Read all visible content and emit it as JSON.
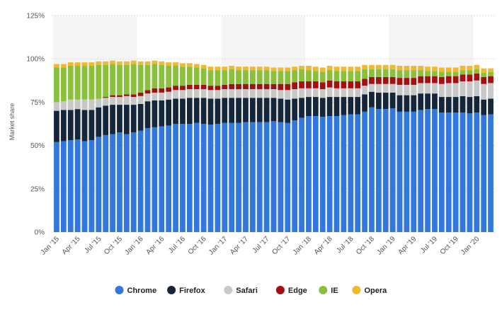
{
  "chart_data": {
    "type": "bar",
    "stacked": true,
    "ylabel": "Market share",
    "ylim": [
      0,
      125
    ],
    "yticks": [
      "0%",
      "25%",
      "50%",
      "75%",
      "100%",
      "125%"
    ],
    "ytick_values": [
      0,
      25,
      50,
      75,
      100,
      125
    ],
    "grid": true,
    "legend_position": "bottom",
    "categories": [
      "Jan '15",
      "Feb '15",
      "Mar '15",
      "Apr '15",
      "May '15",
      "Jun '15",
      "Jul '15",
      "Aug '15",
      "Sep '15",
      "Oct '15",
      "Nov '15",
      "Dec '15",
      "Jan '16",
      "Feb '16",
      "Mar '16",
      "Apr '16",
      "May '16",
      "Jun '16",
      "Jul '16",
      "Aug '16",
      "Sep '16",
      "Oct '16",
      "Nov '16",
      "Dec '16",
      "Jan '17",
      "Feb '17",
      "Mar '17",
      "Apr '17",
      "May '17",
      "Jun '17",
      "Jul '17",
      "Aug '17",
      "Sep '17",
      "Oct '17",
      "Nov '17",
      "Dec '17",
      "Jan '18",
      "Feb '18",
      "Mar '18",
      "Apr '18",
      "May '18",
      "Jun '18",
      "Jul '18",
      "Aug '18",
      "Sep '18",
      "Oct '18",
      "Nov '18",
      "Dec '18",
      "Jan '19",
      "Feb '19",
      "Mar '19",
      "Apr '19",
      "May '19",
      "Jun '19",
      "Jul '19",
      "Aug '19",
      "Sep '19",
      "Oct '19",
      "Nov '19",
      "Dec '19",
      "Jan '20",
      "Feb '20",
      "Mar '20"
    ],
    "xtick_labels": [
      "Jan '15",
      "Apr '15",
      "Jul '15",
      "Oct '15",
      "Jan '16",
      "Apr '16",
      "Jul '16",
      "Oct '16",
      "Jan '17",
      "Apr '17",
      "Jul '17",
      "Oct '17",
      "Jan '18",
      "Apr '18",
      "Jul '18",
      "Oct '18",
      "Jan '19",
      "Apr '19",
      "Jul '19",
      "Oct '19",
      "Jan '20"
    ],
    "series": [
      {
        "name": "Chrome",
        "color": "#3278dc",
        "values": [
          52,
          52.5,
          53,
          53.5,
          52.5,
          53,
          55,
          56,
          56.5,
          57.5,
          56.5,
          57.5,
          58.5,
          60,
          60.5,
          61,
          61.5,
          62.5,
          62.5,
          62.5,
          63,
          62.5,
          62,
          62.5,
          63,
          63,
          63,
          63.5,
          63.5,
          63.5,
          63.5,
          64,
          63.5,
          63,
          64.5,
          66,
          67,
          67,
          66.5,
          67,
          67,
          67.5,
          68,
          68,
          69.5,
          72,
          71,
          71,
          71.5,
          69.5,
          69.5,
          69.5,
          70.5,
          71,
          71,
          69,
          69,
          69,
          69,
          68.5,
          69,
          67.5,
          68
        ]
      },
      {
        "name": "Firefox",
        "color": "#15253a",
        "values": [
          18,
          18,
          17.5,
          17.5,
          18,
          17.5,
          17,
          17,
          17,
          16,
          17,
          16,
          15.5,
          15.5,
          15.5,
          15,
          15,
          14.5,
          14.5,
          15,
          14.5,
          15,
          15,
          14.5,
          14.5,
          14.5,
          14.5,
          14,
          14,
          14,
          14,
          13.5,
          13.5,
          13.5,
          12.5,
          11.5,
          11,
          11,
          11,
          11,
          11,
          10.5,
          10,
          10,
          10,
          9,
          9.5,
          9.5,
          9,
          9.5,
          9.5,
          9.5,
          9.5,
          9,
          9,
          9,
          9,
          9,
          9.5,
          9.5,
          9.5,
          9,
          9
        ]
      },
      {
        "name": "Safari",
        "color": "#c8c8c8",
        "values": [
          5,
          5,
          6,
          5.5,
          6,
          6,
          5,
          4.5,
          4.5,
          4.5,
          5,
          4.5,
          4.5,
          4.5,
          4.5,
          4.5,
          4.5,
          5,
          5,
          5,
          5,
          5,
          5,
          5,
          5,
          5,
          5,
          5,
          5,
          5,
          5,
          5,
          5,
          5.5,
          5.5,
          5.5,
          5,
          5,
          5,
          5.5,
          5,
          5,
          5,
          5,
          5,
          4.5,
          5,
          5,
          5,
          6,
          6,
          6,
          6,
          6,
          6,
          7.5,
          8,
          8,
          8.5,
          9,
          9,
          9,
          9
        ]
      },
      {
        "name": "Edge",
        "color": "#a41010",
        "values": [
          0,
          0,
          0,
          0,
          0,
          0,
          0,
          0.5,
          1,
          1,
          1,
          1.5,
          2,
          2,
          2.5,
          2.5,
          2.5,
          2.5,
          2.5,
          2.5,
          2.5,
          2.5,
          2.5,
          2.5,
          2.5,
          3,
          3,
          3,
          3,
          3,
          3,
          3,
          3.5,
          3.5,
          4,
          4,
          4,
          4,
          4,
          4,
          4,
          4,
          4,
          4,
          4,
          4,
          4,
          4,
          4,
          4,
          4,
          4,
          4,
          4,
          4,
          4,
          4,
          4,
          4,
          4,
          4,
          4,
          4
        ]
      },
      {
        "name": "IE",
        "color": "#8ac03c",
        "values": [
          20,
          19.5,
          19.5,
          19.5,
          19.5,
          19.5,
          19.5,
          18.5,
          18,
          17.5,
          17,
          17.5,
          16,
          14.5,
          14,
          13.5,
          12.5,
          11.5,
          11,
          10.5,
          10,
          9.5,
          9,
          9,
          8.5,
          8.5,
          8,
          8,
          8,
          8,
          8,
          7.5,
          7.5,
          7.5,
          7,
          7,
          6.5,
          6,
          6,
          6,
          6,
          6,
          6,
          6,
          5.5,
          4.5,
          4.5,
          4.5,
          4.5,
          4.5,
          4.5,
          4.5,
          3.5,
          3,
          3,
          3,
          2.5,
          2.5,
          2.5,
          2.5,
          2.5,
          2.5,
          2.5
        ]
      },
      {
        "name": "Opera",
        "color": "#f0b930",
        "values": [
          2,
          2,
          2,
          2,
          2,
          2,
          2,
          2,
          2,
          2,
          2,
          2,
          2,
          2,
          2,
          2,
          2,
          2,
          2,
          2,
          2,
          2,
          2,
          2,
          2,
          2,
          2,
          2,
          2,
          2,
          2,
          2,
          2,
          2,
          2,
          2,
          2.5,
          2.5,
          2.5,
          2.5,
          2.5,
          2.5,
          2.5,
          2.5,
          2.5,
          2.5,
          2.5,
          2.5,
          2.5,
          2.5,
          2.5,
          2.5,
          2.5,
          2.5,
          2.5,
          2.5,
          2.5,
          2.5,
          2.5,
          2.5,
          2.5,
          2.5,
          2
        ]
      }
    ]
  }
}
